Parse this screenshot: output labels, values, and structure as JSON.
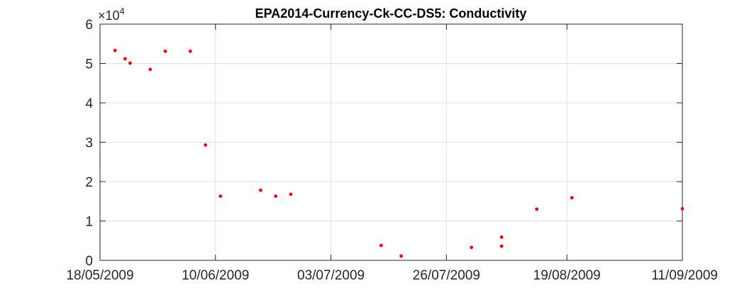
{
  "chart_data": {
    "type": "scatter",
    "title": "EPA2014-Currency-Ck-CC-DS5: Conductivity",
    "xlabel": "",
    "ylabel": "",
    "y_multiplier": {
      "base": "×10",
      "exponent": "4"
    },
    "ylim": [
      0,
      60000
    ],
    "y_ticks": [
      0,
      10000,
      20000,
      30000,
      40000,
      50000,
      60000
    ],
    "y_tick_labels": [
      "0",
      "1",
      "2",
      "3",
      "4",
      "5",
      "6"
    ],
    "xlim": [
      "2009-05-18",
      "2009-09-11"
    ],
    "x_ticks": [
      "2009-05-18",
      "2009-06-10",
      "2009-07-03",
      "2009-07-26",
      "2009-08-19",
      "2009-09-11"
    ],
    "x_tick_labels": [
      "18/05/2009",
      "10/06/2009",
      "03/07/2009",
      "26/07/2009",
      "19/08/2009",
      "11/09/2009"
    ],
    "grid": true,
    "marker_color": "#ff0000",
    "points": [
      {
        "x": "2009-05-21",
        "y": 53300
      },
      {
        "x": "2009-05-23",
        "y": 51200
      },
      {
        "x": "2009-05-24",
        "y": 50100
      },
      {
        "x": "2009-05-28",
        "y": 48500
      },
      {
        "x": "2009-05-31",
        "y": 53100
      },
      {
        "x": "2009-06-05",
        "y": 53100
      },
      {
        "x": "2009-06-08",
        "y": 29300
      },
      {
        "x": "2009-06-11",
        "y": 16300
      },
      {
        "x": "2009-06-19",
        "y": 17800
      },
      {
        "x": "2009-06-22",
        "y": 16300
      },
      {
        "x": "2009-06-25",
        "y": 16800
      },
      {
        "x": "2009-07-13",
        "y": 3800
      },
      {
        "x": "2009-07-17",
        "y": 1100
      },
      {
        "x": "2009-07-31",
        "y": 3300
      },
      {
        "x": "2009-08-06",
        "y": 3600
      },
      {
        "x": "2009-08-06",
        "y": 5900
      },
      {
        "x": "2009-08-13",
        "y": 13000
      },
      {
        "x": "2009-08-20",
        "y": 15900
      },
      {
        "x": "2009-09-11",
        "y": 13100
      }
    ]
  }
}
